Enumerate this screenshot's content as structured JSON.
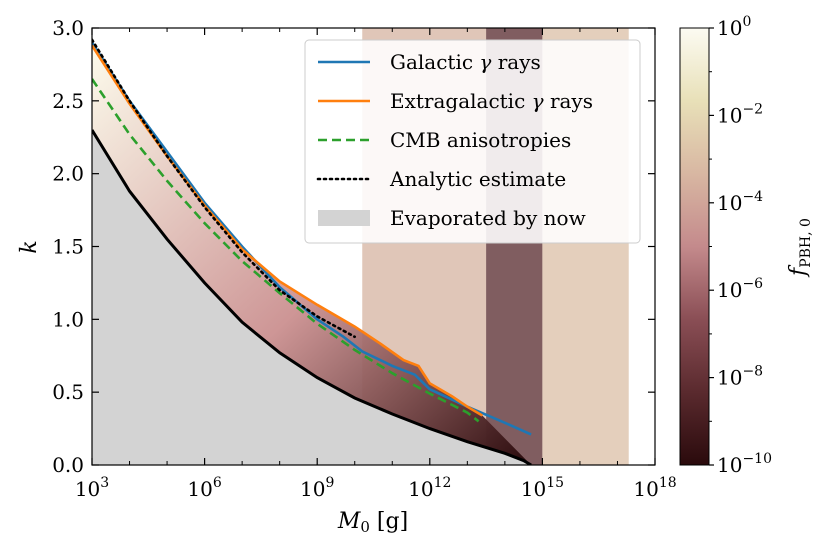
{
  "chart_data": {
    "type": "line",
    "xlabel": "M",
    "xlabel_sub": "0",
    "xlabel_unit": "[g]",
    "ylabel": "k",
    "xscale": "log10",
    "xlim": [
      1000.0,
      1e+18
    ],
    "ylim": [
      0,
      3.0
    ],
    "x_ticks": [
      {
        "base": "10",
        "exp": "3",
        "value": 3
      },
      {
        "base": "10",
        "exp": "6",
        "value": 6
      },
      {
        "base": "10",
        "exp": "9",
        "value": 9
      },
      {
        "base": "10",
        "exp": "12",
        "value": 12
      },
      {
        "base": "10",
        "exp": "15",
        "value": 15
      },
      {
        "base": "10",
        "exp": "18",
        "value": 18
      }
    ],
    "y_ticks": [
      {
        "label": "0.0",
        "value": 0.0
      },
      {
        "label": "0.5",
        "value": 0.5
      },
      {
        "label": "1.0",
        "value": 1.0
      },
      {
        "label": "1.5",
        "value": 1.5
      },
      {
        "label": "2.0",
        "value": 2.0
      },
      {
        "label": "2.5",
        "value": 2.5
      },
      {
        "label": "3.0",
        "value": 3.0
      }
    ],
    "series": [
      {
        "name": "Galactic γ rays",
        "label_prefix": "Galactic ",
        "label_greek": "γ",
        "label_suffix": " rays",
        "color": "#1f77b4",
        "style": "solid",
        "log10_x": [
          3,
          4,
          5,
          6,
          7,
          8,
          9,
          9.7,
          10.2,
          11,
          11.6,
          12,
          13,
          14,
          14.7
        ],
        "y": [
          2.9,
          2.5,
          2.15,
          1.8,
          1.5,
          1.22,
          1.0,
          0.88,
          0.78,
          0.68,
          0.62,
          0.52,
          0.4,
          0.29,
          0.21
        ]
      },
      {
        "name": "Extragalactic γ rays",
        "label_prefix": "Extragalactic ",
        "label_greek": "γ",
        "label_suffix": " rays",
        "color": "#ff7f0e",
        "style": "solid",
        "log10_x": [
          3,
          4,
          5,
          6,
          7,
          8,
          9,
          10,
          10.7,
          11.3,
          11.7,
          12,
          12.6,
          13,
          13.4
        ],
        "y": [
          2.88,
          2.48,
          2.12,
          1.78,
          1.48,
          1.26,
          1.1,
          0.95,
          0.83,
          0.72,
          0.68,
          0.56,
          0.47,
          0.4,
          0.34
        ]
      },
      {
        "name": "CMB anisotropies",
        "label_prefix": "CMB anisotropies",
        "label_greek": "",
        "label_suffix": "",
        "color": "#2ca02c",
        "style": "dashed",
        "log10_x": [
          3,
          4,
          5,
          6,
          7,
          8,
          9,
          10,
          11,
          12,
          13,
          13.3
        ],
        "y": [
          2.65,
          2.27,
          1.95,
          1.66,
          1.4,
          1.18,
          0.97,
          0.79,
          0.63,
          0.49,
          0.36,
          0.3
        ]
      },
      {
        "name": "Analytic estimate",
        "label_prefix": "Analytic estimate",
        "label_greek": "",
        "label_suffix": "",
        "color": "#000000",
        "style": "dotted",
        "log10_x": [
          3,
          4,
          5,
          6,
          7,
          8,
          9,
          10
        ],
        "y": [
          2.92,
          2.5,
          2.12,
          1.77,
          1.46,
          1.2,
          1.02,
          0.88
        ]
      },
      {
        "name": "Evaporated by now",
        "label_prefix": "Evaporated by now",
        "label_greek": "",
        "label_suffix": "",
        "color": "#d3d3d3",
        "style": "fill",
        "log10_x": [
          3,
          4,
          5,
          6,
          7,
          8,
          9,
          10,
          11,
          12,
          13,
          14,
          14.5,
          14.7
        ],
        "y": [
          2.3,
          1.88,
          1.55,
          1.25,
          0.98,
          0.77,
          0.6,
          0.46,
          0.35,
          0.25,
          0.16,
          0.08,
          0.03,
          0.0
        ]
      }
    ],
    "colorbar": {
      "label": "f",
      "label_sub": "PBH, 0",
      "scale": "log10",
      "range": [
        -10,
        0
      ],
      "ticks": [
        {
          "base": "10",
          "exp": "0",
          "value": 0
        },
        {
          "base": "10",
          "exp": "−2",
          "value": -2
        },
        {
          "base": "10",
          "exp": "−4",
          "value": -4
        },
        {
          "base": "10",
          "exp": "−6",
          "value": -6
        },
        {
          "base": "10",
          "exp": "−8",
          "value": -8
        },
        {
          "base": "10",
          "exp": "−10",
          "value": -10
        }
      ],
      "stops": [
        "#2a0a0c",
        "#5a2a2e",
        "#8a4e55",
        "#c48a8c",
        "#d8b7a2",
        "#e8e0b8",
        "#fcfbf2"
      ]
    },
    "heatmap_bands": [
      {
        "log10_x_range": [
          10.2,
          13.5
        ],
        "color_value": -3.5
      },
      {
        "log10_x_range": [
          13.5,
          15.0
        ],
        "color_value": -8.5
      },
      {
        "log10_x_range": [
          15.0,
          17.3
        ],
        "color_value": -3
      }
    ],
    "grid": false,
    "legend_position": "top-right"
  }
}
